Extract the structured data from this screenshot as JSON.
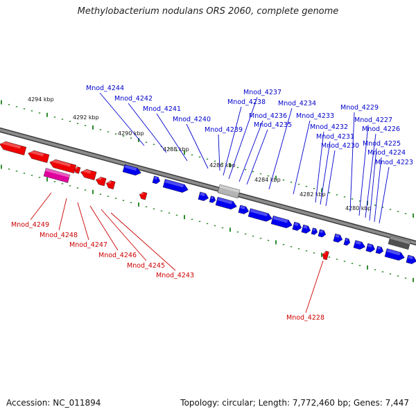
{
  "title": "Methylobacterium nodulans ORS 2060, complete genome",
  "footer": {
    "accession_label": "Accession:",
    "accession": "NC_011894",
    "topology_label": "Topology:",
    "topology": "circular",
    "length_label": "Length:",
    "length": "7,772,460 bp",
    "genes_label": "Genes:",
    "genes": "7,447"
  },
  "colors": {
    "forward_gene": "#0000ee",
    "reverse_gene": "#ee0000",
    "rna_gene": "#e0009e",
    "pseudo_gene": "#b4b4b4",
    "other_gene": "#505050",
    "label_forward": "#0000cc",
    "label_reverse": "#cc0000",
    "tick": "#2e8b2e",
    "backbone": "#8c8c8c"
  },
  "scale_labels": [
    "4294 kbp",
    "4292 kbp",
    "4290 kbp",
    "4288 kbp",
    "4286 kbp",
    "4284 kbp",
    "4282 kbp",
    "4280 kbp"
  ],
  "gene_labels_top": [
    "Mnod_4244",
    "Mnod_4242",
    "Mnod_4241",
    "Mnod_4240",
    "Mnod_4239",
    "Mnod_4238",
    "Mnod_4237",
    "Mnod_4236",
    "Mnod_4235",
    "Mnod_4234",
    "Mnod_4233",
    "Mnod_4232",
    "Mnod_4231",
    "Mnod_4230",
    "Mnod_4229",
    "Mnod_4227",
    "Mnod_4226",
    "Mnod_4225",
    "Mnod_4224",
    "Mnod_4223"
  ],
  "gene_labels_bottom": [
    "Mnod_4249",
    "Mnod_4248",
    "Mnod_4247",
    "Mnod_4246",
    "Mnod_4245",
    "Mnod_4243",
    "Mnod_4228"
  ]
}
